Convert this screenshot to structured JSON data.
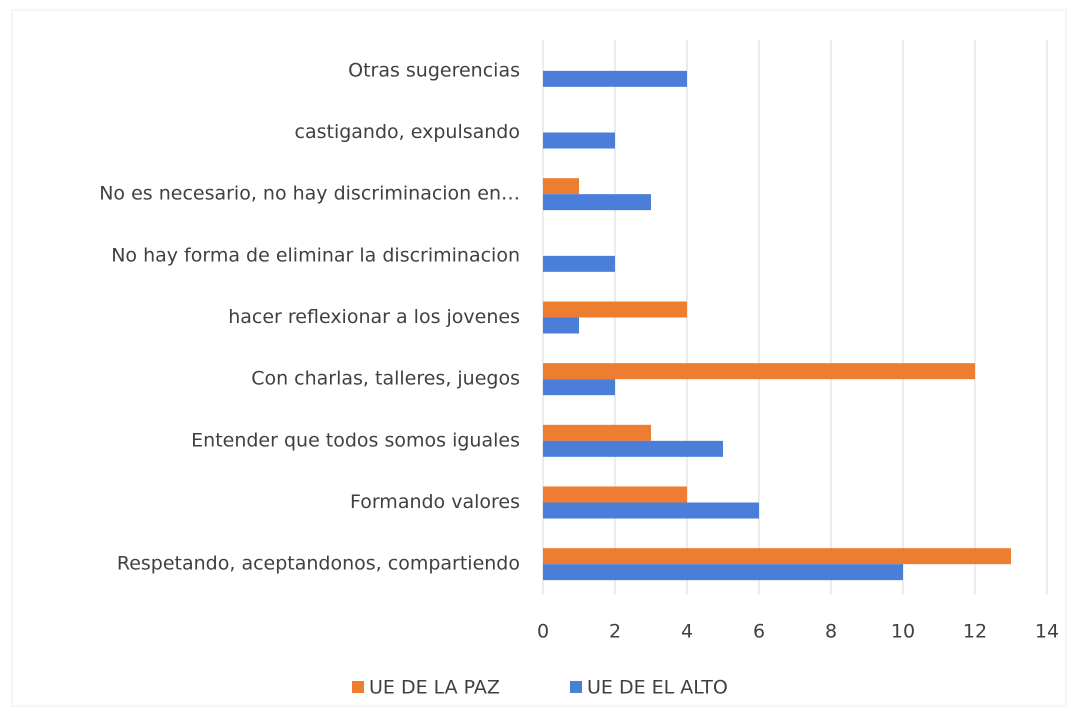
{
  "chart_data": {
    "type": "bar",
    "orientation": "horizontal",
    "categories": [
      "Respetando, aceptandonos, compartiendo",
      "Formando valores",
      "Entender que todos somos iguales",
      "Con charlas, talleres, juegos",
      "hacer reflexionar a los jovenes",
      "No hay forma de eliminar la discriminacion",
      "No es necesario, no hay discriminacion en…",
      "castigando, expulsando",
      "Otras sugerencias"
    ],
    "series": [
      {
        "name": "UE DE LA PAZ",
        "color": "#ed7d31",
        "values": [
          13,
          4,
          3,
          12,
          4,
          0,
          1,
          0,
          0
        ]
      },
      {
        "name": "UE DE EL ALTO",
        "color": "#4a7ed9",
        "values": [
          10,
          6,
          5,
          2,
          1,
          2,
          3,
          2,
          4
        ]
      }
    ],
    "xlim": [
      0,
      14
    ],
    "xticks": [
      0,
      2,
      4,
      6,
      8,
      10,
      12,
      14
    ],
    "grid": true,
    "legend": "bottom"
  }
}
